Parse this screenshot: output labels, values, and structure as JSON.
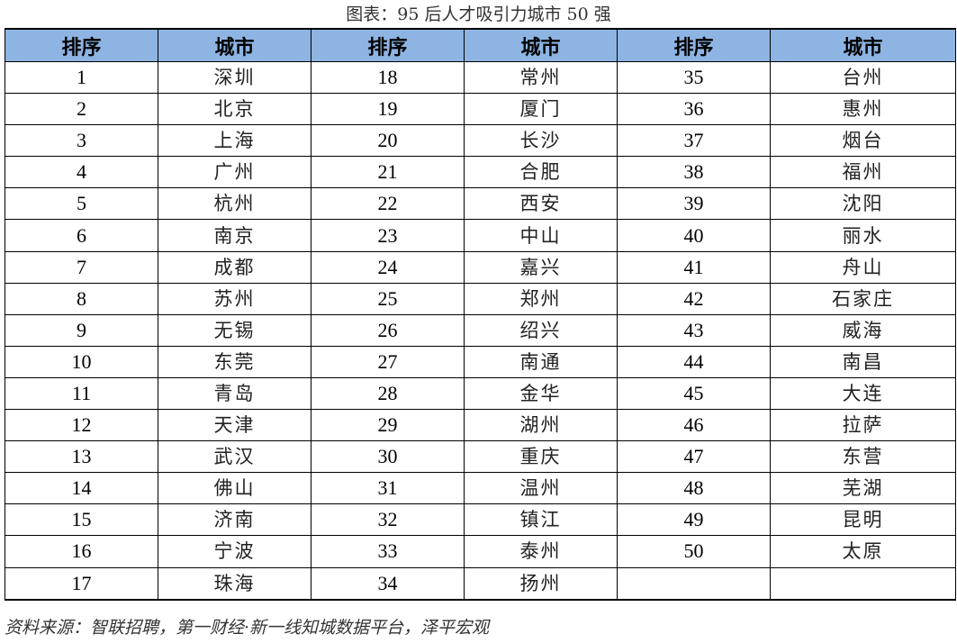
{
  "caption": "图表：95 后人才吸引力城市 50 强",
  "headers": [
    "排序",
    "城市",
    "排序",
    "城市",
    "排序",
    "城市"
  ],
  "rows": [
    [
      "1",
      "深圳",
      "18",
      "常州",
      "35",
      "台州"
    ],
    [
      "2",
      "北京",
      "19",
      "厦门",
      "36",
      "惠州"
    ],
    [
      "3",
      "上海",
      "20",
      "长沙",
      "37",
      "烟台"
    ],
    [
      "4",
      "广州",
      "21",
      "合肥",
      "38",
      "福州"
    ],
    [
      "5",
      "杭州",
      "22",
      "西安",
      "39",
      "沈阳"
    ],
    [
      "6",
      "南京",
      "23",
      "中山",
      "40",
      "丽水"
    ],
    [
      "7",
      "成都",
      "24",
      "嘉兴",
      "41",
      "舟山"
    ],
    [
      "8",
      "苏州",
      "25",
      "郑州",
      "42",
      "石家庄"
    ],
    [
      "9",
      "无锡",
      "26",
      "绍兴",
      "43",
      "威海"
    ],
    [
      "10",
      "东莞",
      "27",
      "南通",
      "44",
      "南昌"
    ],
    [
      "11",
      "青岛",
      "28",
      "金华",
      "45",
      "大连"
    ],
    [
      "12",
      "天津",
      "29",
      "湖州",
      "46",
      "拉萨"
    ],
    [
      "13",
      "武汉",
      "30",
      "重庆",
      "47",
      "东营"
    ],
    [
      "14",
      "佛山",
      "31",
      "温州",
      "48",
      "芜湖"
    ],
    [
      "15",
      "济南",
      "32",
      "镇江",
      "49",
      "昆明"
    ],
    [
      "16",
      "宁波",
      "33",
      "泰州",
      "50",
      "太原"
    ],
    [
      "17",
      "珠海",
      "34",
      "扬州",
      "",
      ""
    ]
  ],
  "source": "资料来源：智联招聘，第一财经·新一线知城数据平台，泽平宏观",
  "colors": {
    "header_bg": "#8db4e2",
    "border": "#000000"
  }
}
